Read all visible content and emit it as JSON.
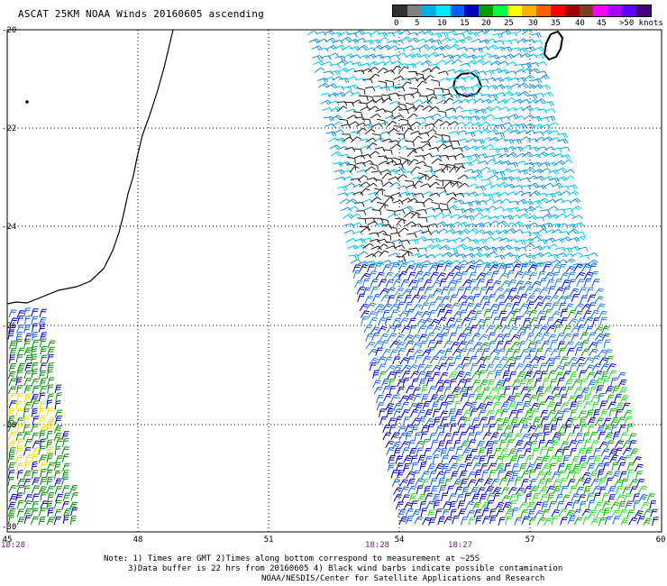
{
  "title": "ASCAT 25KM NOAA Winds 20160605 ascending",
  "colorbar": {
    "labels": [
      "0",
      "5",
      "10",
      "15",
      "20",
      "25",
      "30",
      "35",
      "40",
      "45",
      ">50 knots"
    ],
    "colors": [
      "#303030",
      "#808080",
      "#00b0e0",
      "#00e8ff",
      "#0060ff",
      "#0000c0",
      "#00a000",
      "#00ff40",
      "#ffff00",
      "#ffb000",
      "#ff6000",
      "#ff0000",
      "#a00000",
      "#7a4020",
      "#ff00ff",
      "#b000ff",
      "#6000ff",
      "#400080"
    ]
  },
  "axes": {
    "lon_labels": [
      "45",
      "48",
      "51",
      "54",
      "57",
      "60"
    ],
    "lat_labels": [
      "-20",
      "-22",
      "-24",
      "-26",
      "-28",
      "-30"
    ]
  },
  "times": [
    "18:28",
    "18:28",
    "18:27"
  ],
  "notes": {
    "line1": "Note: 1) Times are GMT 2)Times along bottom correspond to measurement at ~25S",
    "line2": "3)Data buffer is 22 hrs from 20160605 4) Black wind barbs indicate possible contamination"
  },
  "credit": "NOAA/NESDIS/Center for Satellite Applications and Research"
}
